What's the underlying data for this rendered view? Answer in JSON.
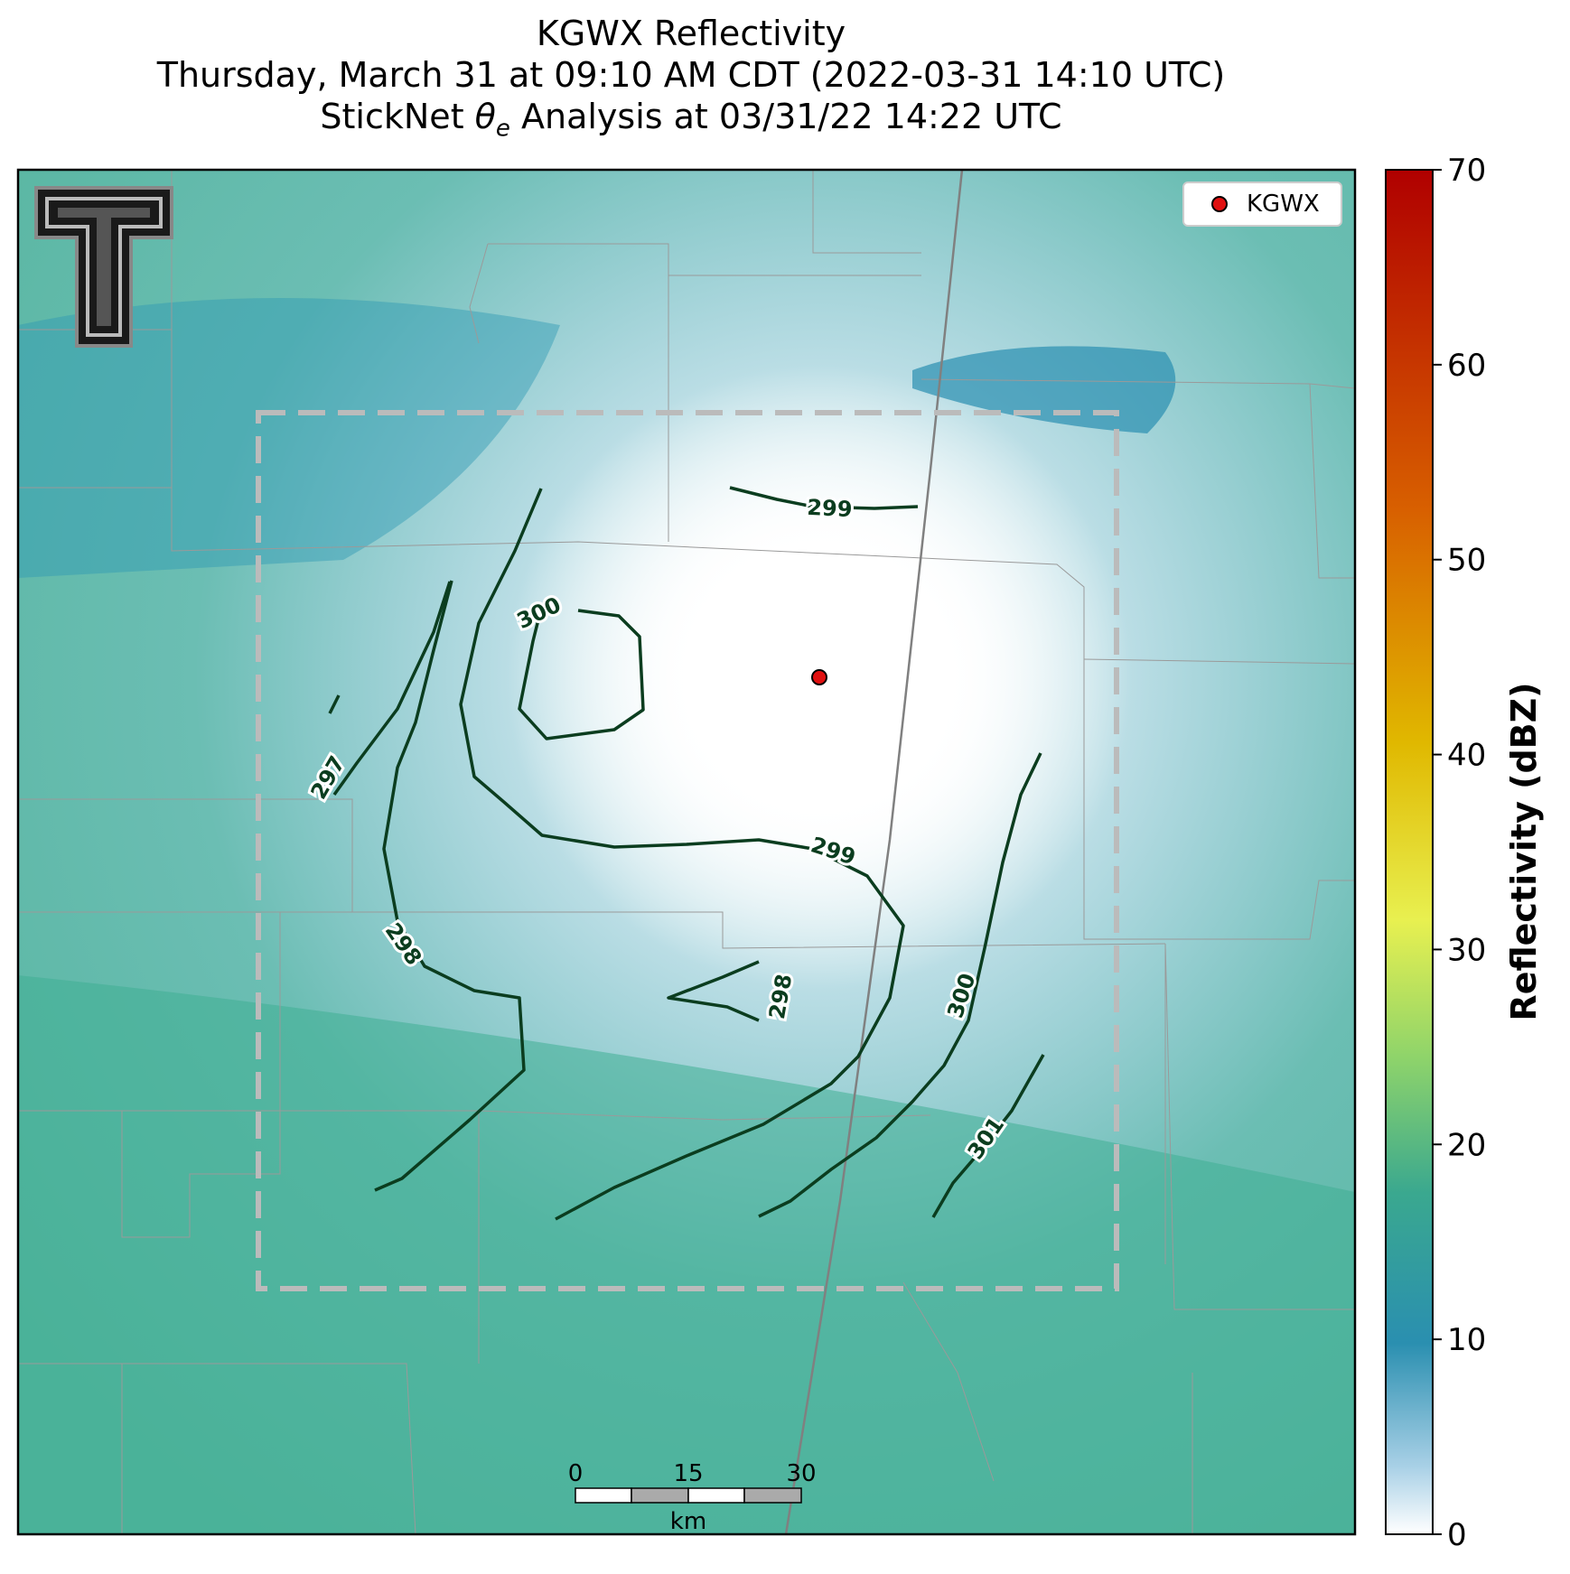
{
  "title": {
    "line1": "KGWX Reflectivity",
    "line2": "Thursday, March 31 at 09:10 AM CDT (2022-03-31 14:10 UTC)",
    "line3_prefix": "StickNet ",
    "line3_symbol": "θ",
    "line3_subscript": "e",
    "line3_suffix": " Analysis at 03/31/22 14:22 UTC"
  },
  "legend": {
    "label": "KGWX",
    "marker_color": "#e01010"
  },
  "radar_site": {
    "name": "KGWX",
    "color": "#e01010"
  },
  "colorbar": {
    "label": "Reflectivity (dBZ)",
    "min": 0,
    "max": 70,
    "ticks": [
      "0",
      "10",
      "20",
      "30",
      "40",
      "50",
      "60",
      "70"
    ],
    "colors": [
      "#ffffff",
      "#2a8fb0",
      "#3aa88f",
      "#8fd46a",
      "#e8e84a",
      "#e0b000",
      "#d86000",
      "#b00000"
    ]
  },
  "scale_bar": {
    "ticks": [
      "0",
      "15",
      "30"
    ],
    "unit": "km"
  },
  "contours": {
    "color": "#0b3d1f",
    "labels": [
      "299",
      "300",
      "297",
      "299",
      "298",
      "298",
      "300",
      "301"
    ]
  },
  "analysis_box": {
    "color": "#bbbbbb"
  }
}
